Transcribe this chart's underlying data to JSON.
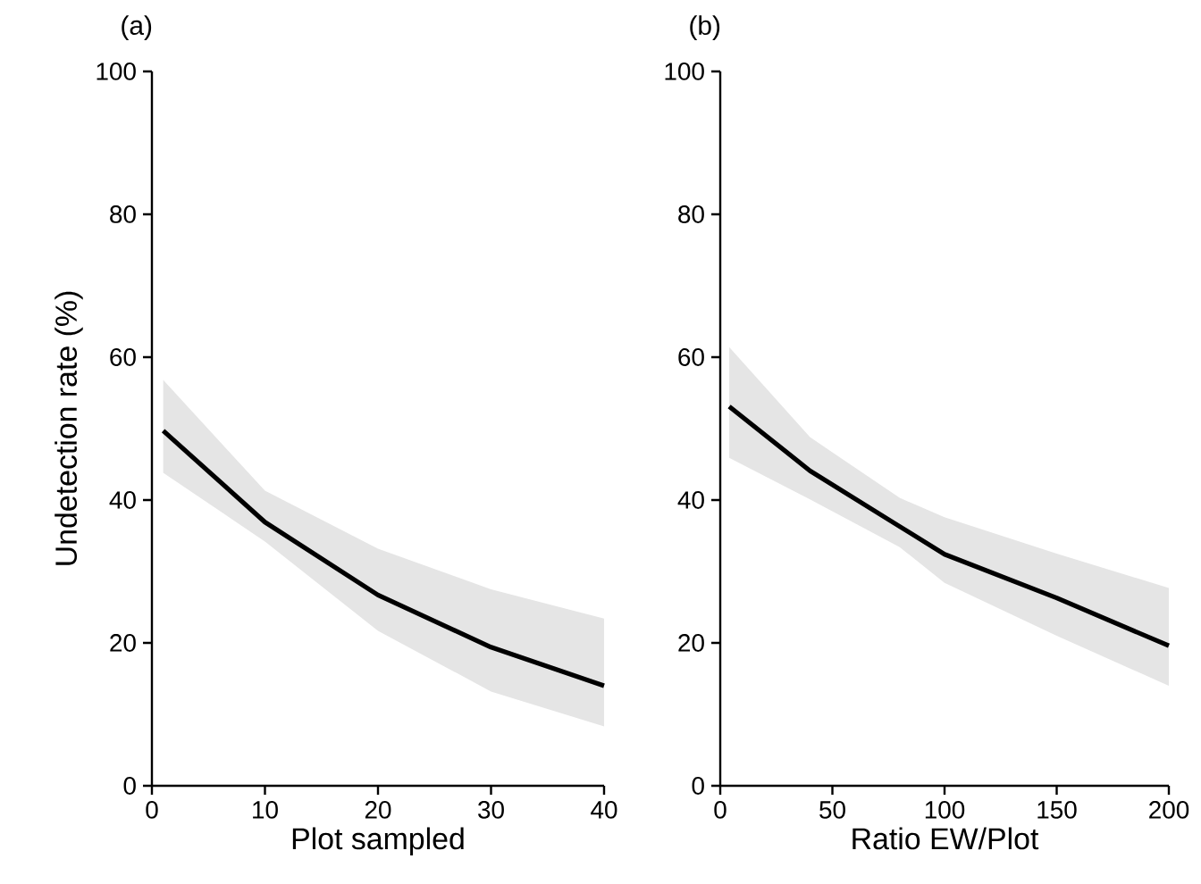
{
  "chart_data": [
    {
      "type": "line",
      "title": "(a)",
      "xlabel": "Plot sampled",
      "ylabel": "Undetection rate (%)",
      "xlim": [
        0,
        40
      ],
      "xticks": [
        0,
        10,
        20,
        30,
        40
      ],
      "ylim": [
        0,
        100
      ],
      "yticks": [
        0,
        20,
        40,
        60,
        80,
        100
      ],
      "series": [
        {
          "color": "#000000",
          "x": [
            1,
            10,
            20,
            30,
            40
          ],
          "values": [
            49.7,
            36.9,
            26.7,
            19.4,
            14.0
          ],
          "lower": [
            43.8,
            34.2,
            21.7,
            13.2,
            8.3
          ],
          "upper": [
            56.8,
            41.3,
            33.2,
            27.5,
            23.4
          ]
        }
      ]
    },
    {
      "type": "line",
      "title": "(b)",
      "xlabel": "Ratio EW/Plot",
      "xlim": [
        0,
        200
      ],
      "xticks": [
        0,
        50,
        100,
        150,
        200
      ],
      "ylim": [
        0,
        100
      ],
      "yticks": [
        0,
        20,
        40,
        60,
        80,
        100
      ],
      "series": [
        {
          "color": "#000000",
          "x": [
            4,
            40,
            80,
            100,
            150,
            200
          ],
          "values": [
            53.1,
            44.1,
            36.3,
            32.4,
            26.3,
            19.6
          ],
          "lower": [
            45.9,
            40.1,
            33.4,
            28.4,
            21.0,
            14.0
          ],
          "upper": [
            61.4,
            48.8,
            40.3,
            37.6,
            32.5,
            27.7
          ]
        }
      ]
    }
  ]
}
